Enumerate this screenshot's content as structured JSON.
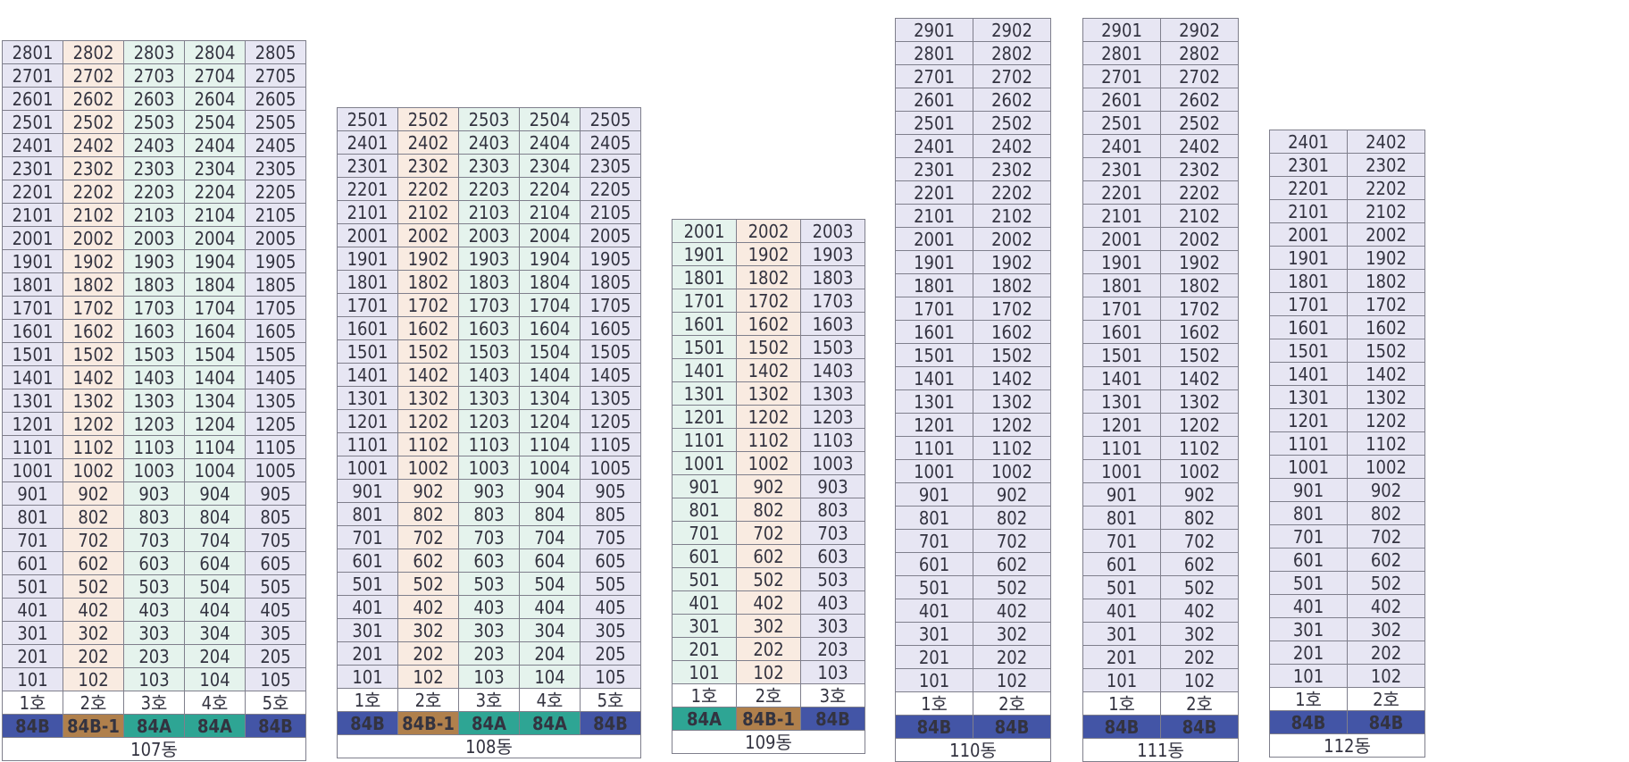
{
  "label_suffix": "호",
  "type_styles": {
    "84B": {
      "cell": "#e7e6f3",
      "tag": "#4355a6"
    },
    "84B-1": {
      "cell": "#f9ebe1",
      "tag": "#b0804c"
    },
    "84A": {
      "cell": "#e5f3ed",
      "tag": "#2ea594"
    }
  },
  "buildings": [
    {
      "name": "107동",
      "top_floor": 28,
      "units": [
        {
          "label": "1호",
          "type": "84B"
        },
        {
          "label": "2호",
          "type": "84B-1"
        },
        {
          "label": "3호",
          "type": "84A"
        },
        {
          "label": "4호",
          "type": "84A"
        },
        {
          "label": "5호",
          "type": "84B"
        }
      ]
    },
    {
      "name": "108동",
      "top_floor": 25,
      "units": [
        {
          "label": "1호",
          "type": "84B"
        },
        {
          "label": "2호",
          "type": "84B-1"
        },
        {
          "label": "3호",
          "type": "84A"
        },
        {
          "label": "4호",
          "type": "84A"
        },
        {
          "label": "5호",
          "type": "84B"
        }
      ]
    },
    {
      "name": "109동",
      "top_floor": 20,
      "units": [
        {
          "label": "1호",
          "type": "84A"
        },
        {
          "label": "2호",
          "type": "84B-1"
        },
        {
          "label": "3호",
          "type": "84B"
        }
      ]
    },
    {
      "name": "110동",
      "top_floor": 29,
      "units": [
        {
          "label": "1호",
          "type": "84B"
        },
        {
          "label": "2호",
          "type": "84B"
        }
      ]
    },
    {
      "name": "111동",
      "top_floor": 29,
      "units": [
        {
          "label": "1호",
          "type": "84B"
        },
        {
          "label": "2호",
          "type": "84B"
        }
      ]
    },
    {
      "name": "112동",
      "top_floor": 24,
      "units": [
        {
          "label": "1호",
          "type": "84B"
        },
        {
          "label": "2호",
          "type": "84B"
        }
      ]
    }
  ]
}
